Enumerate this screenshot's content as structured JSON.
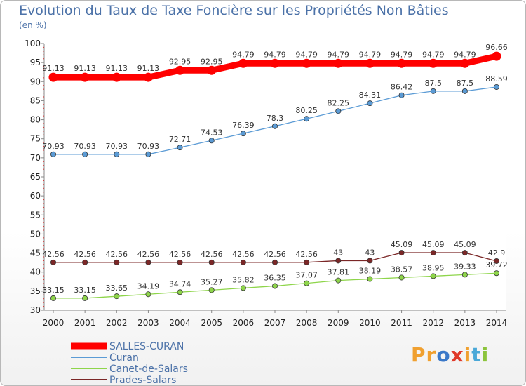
{
  "title": "Evolution du Taux de Taxe Foncière sur les Propriétés Non Bâties",
  "unit_label": "(en %)",
  "logo": {
    "text": "Proxiti",
    "letters": [
      {
        "ch": "P",
        "color": "#f0a030"
      },
      {
        "ch": "r",
        "color": "#f0a030"
      },
      {
        "ch": "o",
        "color": "#3a78c8"
      },
      {
        "ch": "x",
        "color": "#e03a2a"
      },
      {
        "ch": "i",
        "color": "#f0a030"
      },
      {
        "ch": "t",
        "color": "#4aa8d8"
      },
      {
        "ch": "i",
        "color": "#8cc43c"
      }
    ]
  },
  "chart_data": {
    "type": "line",
    "title": "Evolution du Taux de Taxe Foncière sur les Propriétés Non Bâties",
    "xlabel": "",
    "ylabel": "(en %)",
    "x": [
      "2000",
      "2001",
      "2002",
      "2003",
      "2004",
      "2005",
      "2006",
      "2007",
      "2008",
      "2009",
      "2010",
      "2011",
      "2012",
      "2013",
      "2014"
    ],
    "ylim": [
      30,
      100
    ],
    "yticks": [
      30,
      35,
      40,
      45,
      50,
      55,
      60,
      65,
      70,
      75,
      80,
      85,
      90,
      95,
      100
    ],
    "grid": false,
    "legend_position": "bottom-left",
    "series": [
      {
        "name": "SALLES-CURAN",
        "color": "#ff0000",
        "emphasis": true,
        "values": [
          91.13,
          91.13,
          91.13,
          91.13,
          92.95,
          92.95,
          94.79,
          94.79,
          94.79,
          94.79,
          94.79,
          94.79,
          94.79,
          94.79,
          96.66
        ],
        "labels": [
          "91.13",
          "91.13",
          "91.13",
          "91.13",
          "92.95",
          "92.95",
          "94.79",
          "94.79",
          "94.79",
          "94.79",
          "94.79",
          "94.79",
          "94.79",
          "94.79",
          "96.66"
        ]
      },
      {
        "name": "Curan",
        "color": "#5b9bd5",
        "emphasis": false,
        "values": [
          70.93,
          70.93,
          70.93,
          70.93,
          72.71,
          74.53,
          76.39,
          78.3,
          80.25,
          82.25,
          84.31,
          86.42,
          87.5,
          87.5,
          88.59
        ],
        "labels": [
          "70.93",
          "70.93",
          "70.93",
          "70.93",
          "72.71",
          "74.53",
          "76.39",
          "78.3",
          "80.25",
          "82.25",
          "84.31",
          "86.42",
          "87.5",
          "87.5",
          "88.59"
        ]
      },
      {
        "name": "Canet-de-Salars",
        "color": "#8ed54a",
        "emphasis": false,
        "values": [
          33.15,
          33.15,
          33.65,
          34.19,
          34.74,
          35.27,
          35.82,
          36.35,
          37.07,
          37.81,
          38.19,
          38.57,
          38.95,
          39.33,
          39.72
        ],
        "labels": [
          "33.15",
          "33.15",
          "33.65",
          "34.19",
          "34.74",
          "35.27",
          "35.82",
          "36.35",
          "37.07",
          "37.81",
          "38.19",
          "38.57",
          "38.95",
          "39.33",
          "39.72"
        ]
      },
      {
        "name": "Prades-Salars",
        "color": "#7b2727",
        "emphasis": false,
        "values": [
          42.56,
          42.56,
          42.56,
          42.56,
          42.56,
          42.56,
          42.56,
          42.56,
          42.56,
          43,
          43,
          45.09,
          45.09,
          45.09,
          42.9
        ],
        "labels": [
          "42.56",
          "42.56",
          "42.56",
          "42.56",
          "42.56",
          "42.56",
          "42.56",
          "42.56",
          "42.56",
          "43",
          "43",
          "45.09",
          "45.09",
          "45.09",
          "42.9"
        ]
      }
    ]
  }
}
